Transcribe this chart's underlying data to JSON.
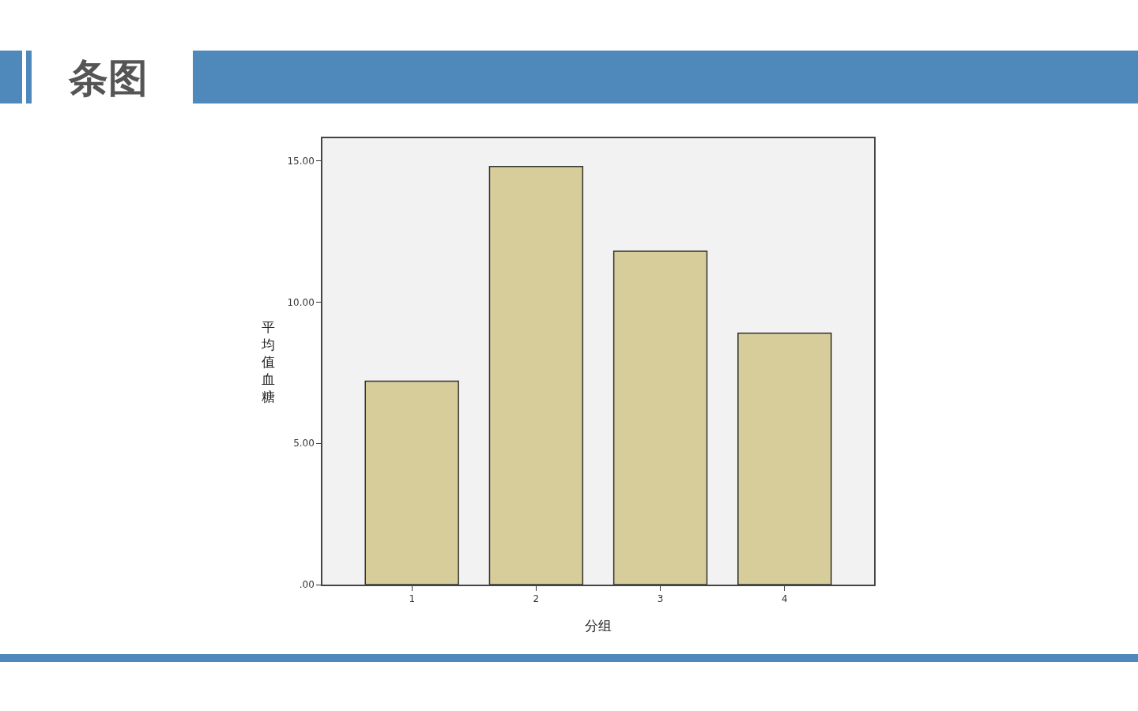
{
  "chart_data": {
    "type": "bar",
    "title": "条图",
    "xlabel": "分组",
    "ylabel": "平均值血糖",
    "categories": [
      "1",
      "2",
      "3",
      "4"
    ],
    "values": [
      7.2,
      14.8,
      11.8,
      8.9
    ],
    "color": "#d6cd9b",
    "ylim": [
      0,
      15.8
    ],
    "yticks": [
      {
        "value": 0,
        "label": ".00"
      },
      {
        "value": 5,
        "label": "5.00"
      },
      {
        "value": 10,
        "label": "10.00"
      },
      {
        "value": 15,
        "label": "15.00"
      }
    ]
  }
}
